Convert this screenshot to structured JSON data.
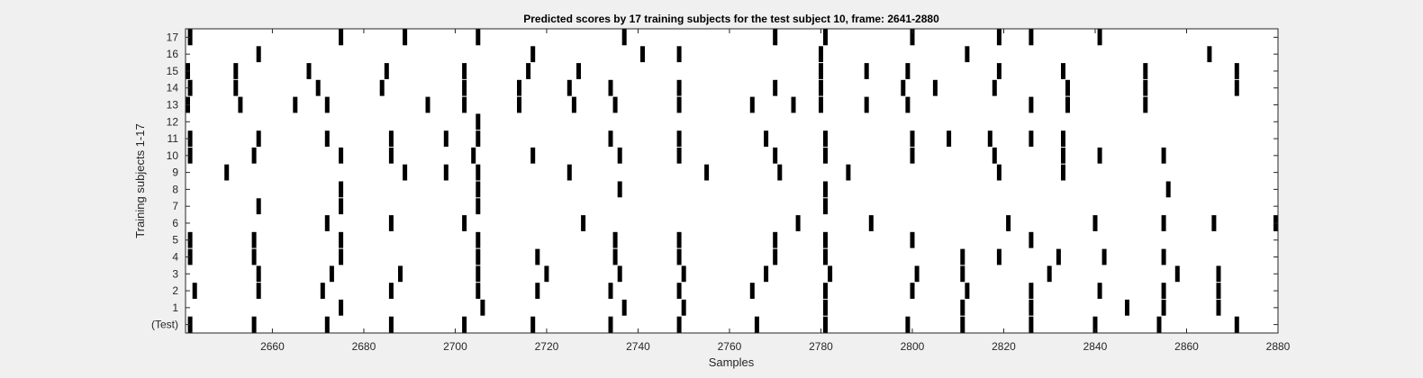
{
  "chart_data": {
    "type": "raster",
    "title": "Predicted scores by 17 training subjects for the test subject 10, frame: 2641-2880",
    "xlabel": "Samples",
    "ylabel": "Training subjects 1-17",
    "xlim": [
      2641,
      2880
    ],
    "x_ticks": [
      2660,
      2680,
      2700,
      2720,
      2740,
      2760,
      2780,
      2800,
      2820,
      2840,
      2860,
      2880
    ],
    "y_tick_labels": [
      "(Test)",
      "1",
      "2",
      "3",
      "4",
      "5",
      "6",
      "7",
      "8",
      "9",
      "10",
      "11",
      "12",
      "13",
      "14",
      "15",
      "16",
      "17"
    ],
    "grid": false,
    "colors": {
      "background": "#f0f0f0",
      "axes": "#ffffff",
      "marks": "#000000"
    },
    "series": [
      {
        "name": "(Test)",
        "x": [
          2642,
          2656,
          2672,
          2686,
          2702,
          2717,
          2734,
          2749,
          2766,
          2781,
          2799,
          2811,
          2826,
          2840,
          2854,
          2871
        ]
      },
      {
        "name": "1",
        "x": [
          2675,
          2706,
          2737,
          2750,
          2781,
          2811,
          2826,
          2847,
          2855,
          2867
        ]
      },
      {
        "name": "2",
        "x": [
          2643,
          2657,
          2671,
          2686,
          2705,
          2718,
          2734,
          2749,
          2765,
          2781,
          2800,
          2812,
          2826,
          2841,
          2855,
          2867
        ]
      },
      {
        "name": "3",
        "x": [
          2657,
          2673,
          2688,
          2705,
          2720,
          2736,
          2750,
          2768,
          2782,
          2801,
          2811,
          2830,
          2858,
          2867
        ]
      },
      {
        "name": "4",
        "x": [
          2642,
          2656,
          2675,
          2705,
          2718,
          2735,
          2749,
          2770,
          2781,
          2811,
          2819,
          2832,
          2842,
          2855
        ]
      },
      {
        "name": "5",
        "x": [
          2642,
          2656,
          2675,
          2705,
          2735,
          2749,
          2770,
          2781,
          2800,
          2826
        ]
      },
      {
        "name": "6",
        "x": [
          2672,
          2686,
          2702,
          2728,
          2775,
          2791,
          2821,
          2840,
          2855,
          2866,
          2880
        ]
      },
      {
        "name": "7",
        "x": [
          2657,
          2675,
          2705,
          2781
        ]
      },
      {
        "name": "8",
        "x": [
          2675,
          2705,
          2736,
          2781,
          2856
        ]
      },
      {
        "name": "9",
        "x": [
          2650,
          2689,
          2698,
          2705,
          2725,
          2755,
          2771,
          2786,
          2819,
          2833
        ]
      },
      {
        "name": "10",
        "x": [
          2642,
          2656,
          2675,
          2686,
          2704,
          2717,
          2736,
          2749,
          2770,
          2781,
          2800,
          2818,
          2833,
          2841,
          2855
        ]
      },
      {
        "name": "11",
        "x": [
          2642,
          2657,
          2672,
          2686,
          2698,
          2705,
          2734,
          2749,
          2768,
          2781,
          2800,
          2808,
          2817,
          2826,
          2833
        ]
      },
      {
        "name": "12",
        "x": [
          2705
        ]
      },
      {
        "name": "13",
        "x": [
          2641,
          2653,
          2665,
          2672,
          2694,
          2702,
          2714,
          2726,
          2735,
          2749,
          2765,
          2774,
          2780,
          2790,
          2799,
          2826,
          2834,
          2851
        ]
      },
      {
        "name": "14",
        "x": [
          2642,
          2652,
          2670,
          2684,
          2702,
          2714,
          2725,
          2734,
          2749,
          2770,
          2780,
          2798,
          2805,
          2818,
          2834,
          2851,
          2871
        ]
      },
      {
        "name": "15",
        "x": [
          2641,
          2652,
          2668,
          2685,
          2702,
          2716,
          2727,
          2780,
          2790,
          2799,
          2819,
          2833,
          2851,
          2871
        ]
      },
      {
        "name": "16",
        "x": [
          2657,
          2717,
          2741,
          2749,
          2780,
          2812,
          2865
        ]
      },
      {
        "name": "17",
        "x": [
          2642,
          2675,
          2689,
          2705,
          2737,
          2770,
          2781,
          2800,
          2819,
          2826,
          2841
        ]
      }
    ]
  }
}
